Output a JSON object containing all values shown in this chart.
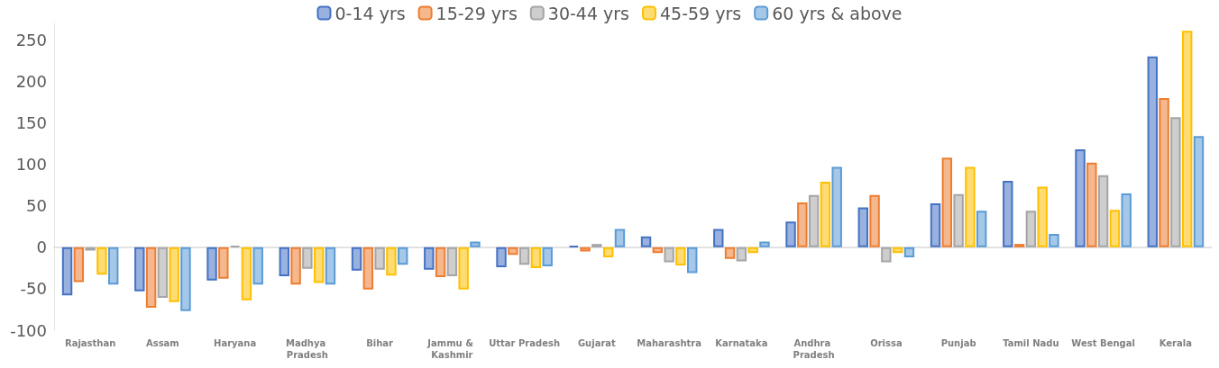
{
  "chart_data": {
    "type": "bar",
    "categories": [
      "Rajasthan",
      "Assam",
      "Haryana",
      "Madhya Pradesh",
      "Bihar",
      "Jammu & Kashmir",
      "Uttar Pradesh",
      "Gujarat",
      "Maharashtra",
      "Karnataka",
      "Andhra Pradesh",
      "Orissa",
      "Punjab",
      "Tamil Nadu",
      "West Bengal",
      "Kerala"
    ],
    "series": [
      {
        "name": "0-14 yrs",
        "color": "#4472c4",
        "values": [
          -58,
          -53,
          -40,
          -35,
          -28,
          -27,
          -24,
          2,
          13,
          22,
          31,
          48,
          53,
          80,
          118,
          230
        ]
      },
      {
        "name": "15-29 yrs",
        "color": "#ed7d31",
        "values": [
          -42,
          -73,
          -38,
          -45,
          -51,
          -36,
          -9,
          -5,
          -7,
          -14,
          54,
          63,
          108,
          4,
          102,
          180
        ]
      },
      {
        "name": "30-44 yrs",
        "color": "#a5a5a5",
        "values": [
          -4,
          -61,
          2,
          -26,
          -27,
          -35,
          -21,
          4,
          -18,
          -17,
          63,
          -18,
          64,
          44,
          87,
          157
        ]
      },
      {
        "name": "45-59 yrs",
        "color": "#ffc000",
        "values": [
          -33,
          -66,
          -64,
          -43,
          -34,
          -51,
          -25,
          -12,
          -22,
          -7,
          79,
          -7,
          97,
          73,
          45,
          261
        ]
      },
      {
        "name": "60 yrs & above",
        "color": "#5b9bd5",
        "values": [
          -45,
          -77,
          -45,
          -45,
          -21,
          7,
          -23,
          22,
          -31,
          7,
          97,
          -12,
          44,
          16,
          65,
          134
        ]
      }
    ],
    "ylim": [
      -100,
      270
    ],
    "yticks": [
      -100,
      -50,
      0,
      50,
      100,
      150,
      200,
      250
    ],
    "legend": "top"
  }
}
